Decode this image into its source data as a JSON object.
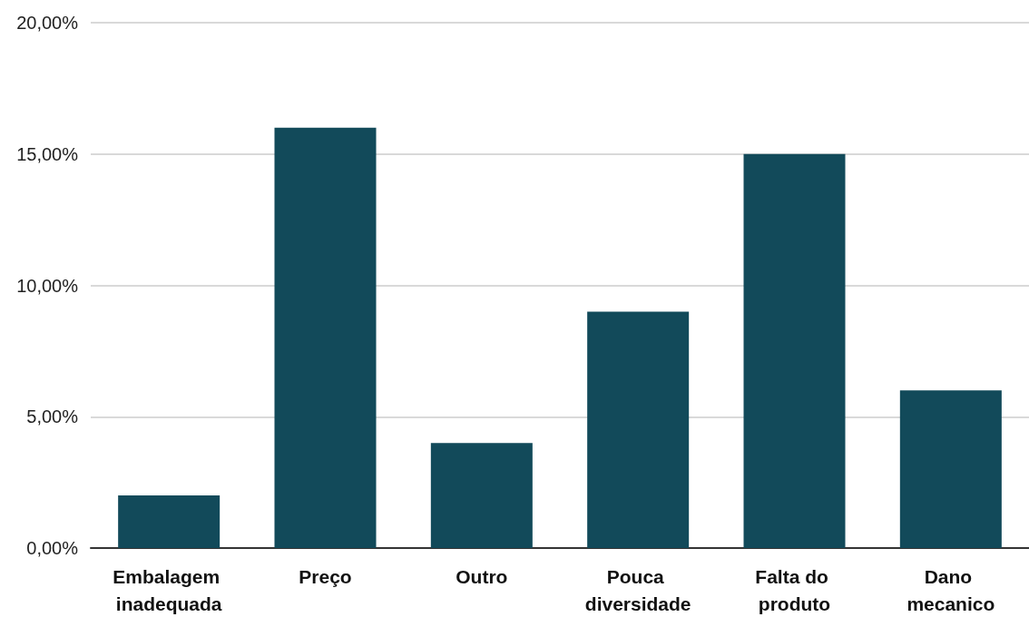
{
  "chart_data": {
    "type": "bar",
    "categories": [
      "Embalagem inadequada",
      "Preço",
      "Outro",
      "Pouca diversidade",
      "Falta do produto",
      "Dano mecanico"
    ],
    "values": [
      2,
      16,
      4,
      9,
      15,
      6
    ],
    "color": "#124a5a",
    "ylim": [
      0,
      20
    ],
    "yticks": [
      {
        "value": 0,
        "label": "0,00%"
      },
      {
        "value": 5,
        "label": "5,00%"
      },
      {
        "value": 10,
        "label": "10,00%"
      },
      {
        "value": 15,
        "label": "15,00%"
      },
      {
        "value": 20,
        "label": "20,00%"
      }
    ],
    "grid": "y"
  }
}
